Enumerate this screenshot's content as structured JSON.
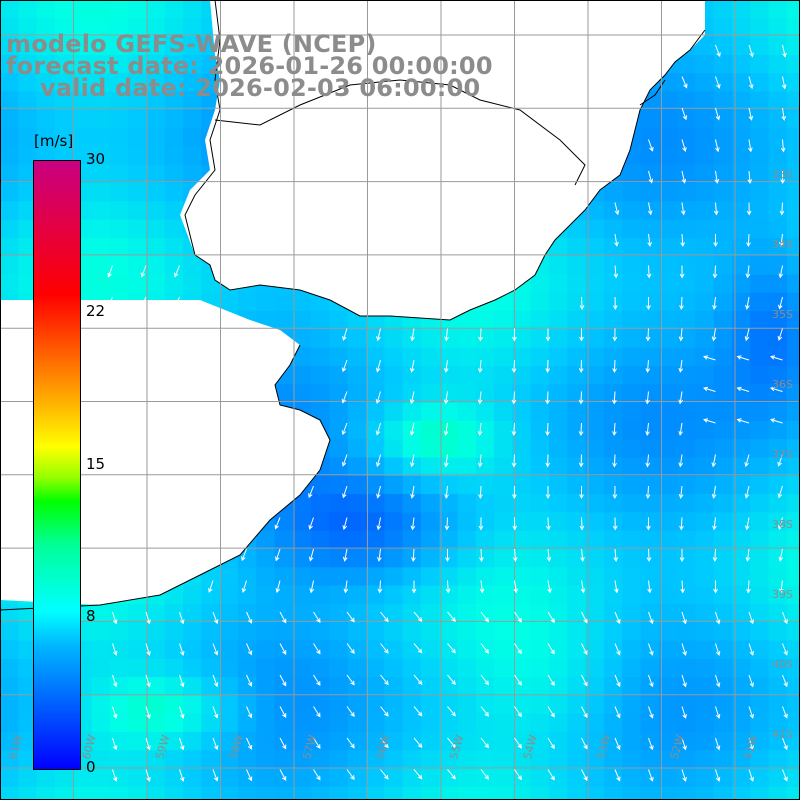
{
  "title": {
    "line1": "modelo GEFS-WAVE (NCEP)",
    "line2": "forecast date: 2026-01-26 00:00:00",
    "line3": "valid date: 2026-02-03 06:00:00"
  },
  "colorbar": {
    "unit": "[m/s]",
    "ticks": [
      "30",
      "22",
      "15",
      "8",
      "0"
    ],
    "colors": [
      "#0000ff",
      "#00b4ff",
      "#00ffff",
      "#00ff96",
      "#00ff00",
      "#ffff00",
      "#ff6e00",
      "#ff0000",
      "#c80082"
    ]
  },
  "axes": {
    "lat_labels": [
      "33S",
      "34S",
      "35S",
      "36S",
      "37S",
      "38S",
      "39S",
      "40S",
      "41S"
    ],
    "lon_labels": [
      "61W",
      "60W",
      "59W",
      "58W",
      "57W",
      "56W",
      "55W",
      "54W",
      "53W",
      "52W",
      "51W"
    ]
  },
  "colors": {
    "land": "#ffffff",
    "coast": "#000000",
    "grid": "#9a9a9a",
    "arrows": "#ffffff",
    "label": "#8c8c8c"
  }
}
